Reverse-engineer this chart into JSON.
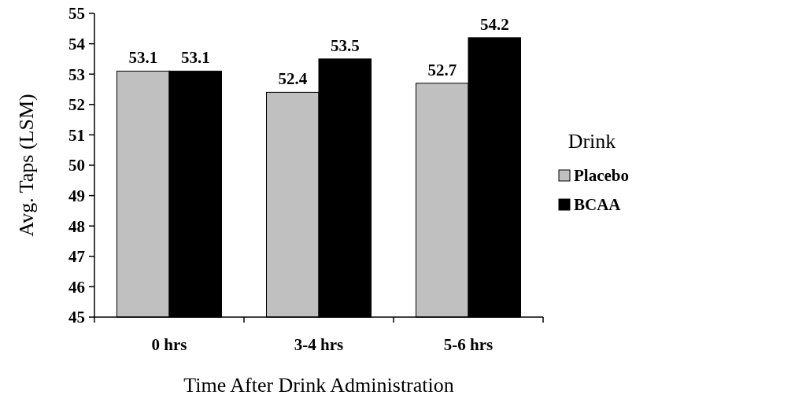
{
  "chart_data": {
    "type": "bar",
    "xlabel": "Time After Drink Administration",
    "ylabel": "Avg. Taps (LSM)",
    "legend_title": "Drink",
    "categories": [
      "0 hrs",
      "3-4 hrs",
      "5-6 hrs"
    ],
    "series": [
      {
        "name": "Placebo",
        "color": "#c0c0c0",
        "values": [
          53.1,
          52.4,
          52.7
        ]
      },
      {
        "name": "BCAA",
        "color": "#000000",
        "values": [
          53.1,
          53.5,
          54.2
        ]
      }
    ],
    "ylim": [
      45,
      55
    ],
    "yticks": [
      45,
      46,
      47,
      48,
      49,
      50,
      51,
      52,
      53,
      54,
      55
    ],
    "data_labels": true,
    "legend": "right",
    "grid": false
  }
}
